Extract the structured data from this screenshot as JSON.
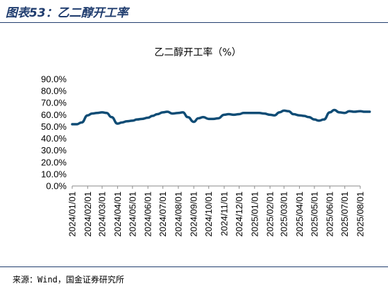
{
  "figure": {
    "title": "图表53：乙二醇开工率",
    "source": "来源：Wind，国金证券研究所"
  },
  "chart_data": {
    "type": "line",
    "title": "乙二醇开工率（%）",
    "xlabel": "",
    "ylabel": "",
    "ylim": [
      0,
      90
    ],
    "yticks": [
      "90.0%",
      "80.0%",
      "70.0%",
      "60.0%",
      "50.0%",
      "40.0%",
      "30.0%",
      "20.0%",
      "10.0%",
      "0.0%"
    ],
    "xticks": [
      "2024/01/01",
      "2024/02/01",
      "2024/03/01",
      "2024/04/01",
      "2024/05/01",
      "2024/06/01",
      "2024/07/01",
      "2024/08/01",
      "2024/09/01",
      "2024/10/01",
      "2024/11/01",
      "2024/12/01",
      "2025/01/01",
      "2025/02/01",
      "2025/03/01",
      "2025/04/01",
      "2025/05/01",
      "2025/06/01",
      "2025/07/01",
      "2025/08/01"
    ],
    "grid": false,
    "legend": "none",
    "line_color": "#0f4c75",
    "series": [
      {
        "name": "",
        "x": [
          "2024/01/01",
          "2024/01/10",
          "2024/01/20",
          "2024/02/01",
          "2024/02/10",
          "2024/02/20",
          "2024/03/01",
          "2024/03/10",
          "2024/03/20",
          "2024/04/01",
          "2024/04/10",
          "2024/04/20",
          "2024/05/01",
          "2024/05/10",
          "2024/05/20",
          "2024/06/01",
          "2024/06/10",
          "2024/06/20",
          "2024/07/01",
          "2024/07/10",
          "2024/07/20",
          "2024/08/01",
          "2024/08/10",
          "2024/08/20",
          "2024/09/01",
          "2024/09/10",
          "2024/09/20",
          "2024/10/01",
          "2024/10/10",
          "2024/10/20",
          "2024/11/01",
          "2024/11/10",
          "2024/11/20",
          "2024/12/01",
          "2024/12/10",
          "2024/12/20",
          "2025/01/01",
          "2025/01/10",
          "2025/01/20",
          "2025/02/01",
          "2025/02/10",
          "2025/02/20",
          "2025/03/01",
          "2025/03/10",
          "2025/03/20",
          "2025/04/01",
          "2025/04/10",
          "2025/04/20",
          "2025/05/01",
          "2025/05/10",
          "2025/05/20",
          "2025/06/01",
          "2025/06/10",
          "2025/06/20",
          "2025/07/01",
          "2025/07/10",
          "2025/07/20",
          "2025/08/01",
          "2025/08/10",
          "2025/08/20"
        ],
        "y": [
          52.0,
          52.0,
          53.5,
          59.5,
          61.0,
          61.5,
          62.0,
          61.5,
          58.0,
          52.5,
          53.5,
          54.5,
          55.0,
          56.0,
          56.5,
          57.5,
          59.0,
          60.5,
          62.0,
          62.5,
          61.0,
          61.5,
          62.0,
          58.0,
          54.0,
          57.0,
          58.0,
          56.5,
          56.5,
          57.0,
          60.0,
          60.5,
          60.0,
          60.5,
          61.5,
          61.5,
          61.5,
          61.5,
          61.0,
          60.0,
          59.5,
          62.0,
          63.5,
          63.0,
          60.5,
          59.5,
          59.0,
          58.0,
          56.0,
          55.0,
          56.0,
          62.0,
          64.0,
          62.0,
          61.5,
          63.0,
          62.5,
          63.0,
          62.5,
          62.5
        ]
      }
    ]
  }
}
